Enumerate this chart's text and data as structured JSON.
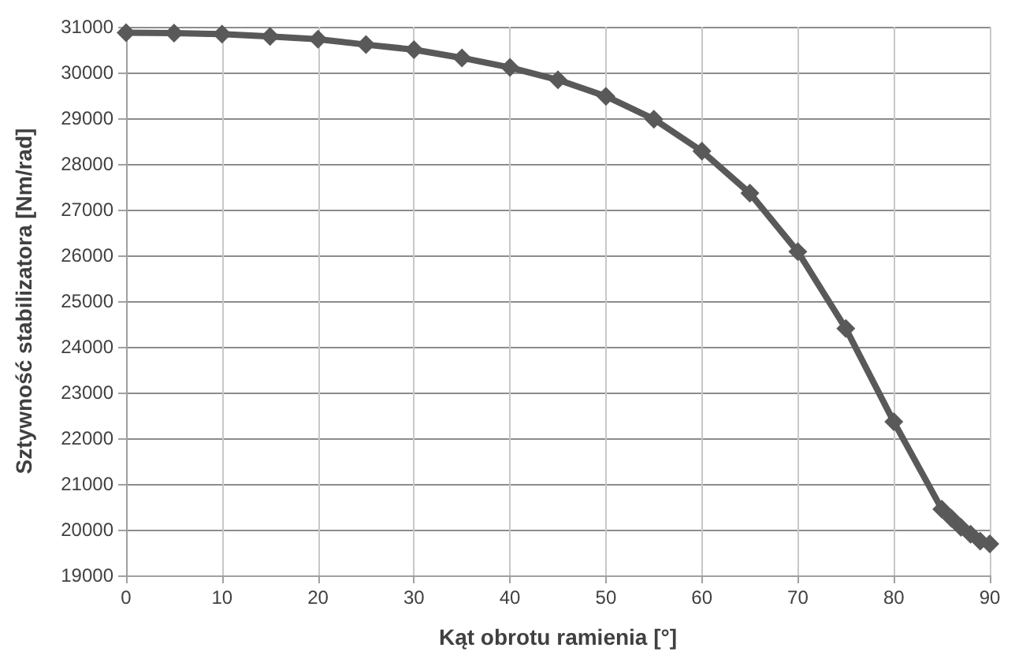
{
  "chart_data": {
    "type": "line",
    "xlabel": "Kąt obrotu ramienia [°]",
    "ylabel": "Sztywność stabilizatora [Nm/rad]",
    "x": [
      0,
      5,
      10,
      15,
      20,
      25,
      30,
      35,
      40,
      45,
      50,
      55,
      60,
      65,
      70,
      75,
      80,
      85,
      86,
      87,
      88,
      89,
      90
    ],
    "series": [
      {
        "color": "#595959",
        "values": [
          30870,
          30860,
          30840,
          30790,
          30730,
          30610,
          30500,
          30320,
          30110,
          29840,
          29480,
          28980,
          28280,
          27360,
          26080,
          24400,
          22360,
          20450,
          20250,
          20050,
          19900,
          19750,
          19690
        ]
      }
    ],
    "xlim": [
      0,
      90
    ],
    "xticks": [
      0,
      10,
      20,
      30,
      40,
      50,
      60,
      70,
      80,
      90
    ],
    "ylim": [
      19000,
      31000
    ],
    "yticks": [
      19000,
      20000,
      21000,
      22000,
      23000,
      24000,
      25000,
      26000,
      27000,
      28000,
      29000,
      30000,
      31000
    ],
    "grid": true,
    "marker": "diamond",
    "line_style": "solid"
  }
}
